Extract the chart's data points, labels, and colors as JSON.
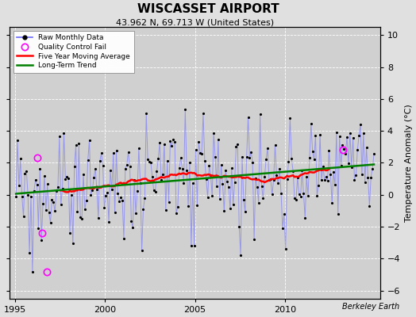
{
  "title": "WISCASSET AIRPORT",
  "subtitle": "43.962 N, 69.713 W (United States)",
  "ylabel": "Temperature Anomaly (°C)",
  "watermark": "Berkeley Earth",
  "xlim": [
    1994.7,
    2015.3
  ],
  "ylim": [
    -6.5,
    10.5
  ],
  "yticks": [
    -6,
    -4,
    -2,
    0,
    2,
    4,
    6,
    8,
    10
  ],
  "xticks": [
    1995,
    2000,
    2005,
    2010
  ],
  "bg_color": "#e0e0e0",
  "plot_bg_color": "#d0d0d0",
  "grid_color": "#ffffff",
  "raw_line_color": "#6666ff",
  "raw_line_alpha": 0.55,
  "raw_dot_color": "black",
  "moving_avg_color": "red",
  "trend_color": "green",
  "qc_fail_color": "magenta",
  "seed": 99,
  "n_months": 240,
  "start_year": 1995.042,
  "noise_std": 1.6,
  "trend_intercept": 0.1,
  "trend_slope": 0.085,
  "qc_fail_times": [
    1996.25,
    1996.5,
    1996.75
  ],
  "qc_fail_values": [
    2.3,
    -2.4,
    -4.8
  ],
  "qc_fail_late_time": 2013.25,
  "qc_fail_late_value": 2.8,
  "figsize": [
    5.24,
    4.0
  ],
  "dpi": 100
}
